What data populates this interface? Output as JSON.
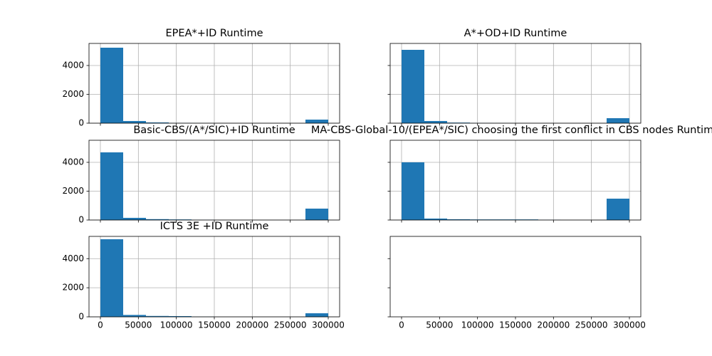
{
  "chart_data": [
    {
      "type": "hist",
      "title": "EPEA*+ID Runtime",
      "color": "#1f77b4",
      "grid": true,
      "bins": [
        0,
        30000,
        60000,
        90000,
        120000,
        150000,
        180000,
        210000,
        240000,
        270000,
        300000
      ],
      "counts": [
        5235,
        150,
        50,
        10,
        5,
        0,
        0,
        0,
        0,
        247
      ],
      "xlim": [
        -15000,
        315000
      ],
      "ylim": [
        0,
        5530
      ],
      "xticks": [
        0,
        50000,
        100000,
        150000,
        200000,
        250000,
        300000
      ],
      "yticks": [
        0,
        2000,
        4000
      ]
    },
    {
      "type": "hist",
      "title": "A*+OD+ID Runtime",
      "color": "#1f77b4",
      "grid": true,
      "bins": [
        0,
        30000,
        60000,
        90000,
        120000,
        150000,
        180000,
        210000,
        240000,
        270000,
        300000
      ],
      "counts": [
        5086,
        150,
        40,
        10,
        5,
        0,
        0,
        0,
        0,
        346
      ],
      "xlim": [
        -15000,
        315000
      ],
      "ylim": [
        0,
        5530
      ],
      "xticks": [
        0,
        50000,
        100000,
        150000,
        200000,
        250000,
        300000
      ],
      "yticks": [
        0,
        2000,
        4000
      ]
    },
    {
      "type": "hist",
      "title": "Basic-CBS/(A*/SIC)+ID Runtime",
      "color": "#1f77b4",
      "grid": true,
      "bins": [
        0,
        30000,
        60000,
        90000,
        120000,
        150000,
        180000,
        210000,
        240000,
        270000,
        300000
      ],
      "counts": [
        4691,
        150,
        60,
        40,
        10,
        0,
        0,
        0,
        0,
        790
      ],
      "xlim": [
        -15000,
        315000
      ],
      "ylim": [
        0,
        5530
      ],
      "xticks": [
        0,
        50000,
        100000,
        150000,
        200000,
        250000,
        300000
      ],
      "yticks": [
        0,
        2000,
        4000
      ]
    },
    {
      "type": "hist",
      "title": "MA-CBS-Global-10/(EPEA*/SIC) choosing the first conflict in CBS nodes Runtime",
      "color": "#1f77b4",
      "grid": true,
      "bins": [
        0,
        30000,
        60000,
        90000,
        120000,
        150000,
        180000,
        210000,
        240000,
        270000,
        300000
      ],
      "counts": [
        4000,
        100,
        50,
        40,
        40,
        40,
        10,
        0,
        0,
        1481
      ],
      "xlim": [
        -15000,
        315000
      ],
      "ylim": [
        0,
        5530
      ],
      "xticks": [
        0,
        50000,
        100000,
        150000,
        200000,
        250000,
        300000
      ],
      "yticks": [
        0,
        2000,
        4000
      ]
    },
    {
      "type": "hist",
      "title": "ICTS 3E +ID Runtime",
      "color": "#1f77b4",
      "grid": true,
      "bins": [
        0,
        30000,
        60000,
        90000,
        120000,
        150000,
        180000,
        210000,
        240000,
        270000,
        300000
      ],
      "counts": [
        5333,
        130,
        60,
        50,
        10,
        0,
        0,
        0,
        0,
        247
      ],
      "xlim": [
        -15000,
        315000
      ],
      "ylim": [
        0,
        5530
      ],
      "xticks": [
        0,
        50000,
        100000,
        150000,
        200000,
        250000,
        300000
      ],
      "yticks": [
        0,
        2000,
        4000
      ]
    },
    {
      "type": "empty",
      "grid": false,
      "xlim": [
        -15000,
        315000
      ],
      "ylim": [
        0,
        5530
      ],
      "xticks": [
        0,
        50000,
        100000,
        150000,
        200000,
        250000,
        300000
      ],
      "yticks": [
        0,
        2000,
        4000
      ]
    }
  ]
}
